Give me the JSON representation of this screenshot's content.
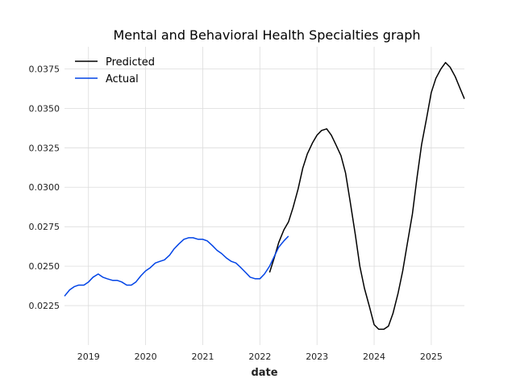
{
  "chart_data": {
    "type": "line",
    "title": "Mental and Behavioral Health Specialties graph",
    "xlabel": "date",
    "ylabel": "",
    "xlim": [
      2018.58,
      2025.58
    ],
    "ylim": [
      0.02,
      0.0389
    ],
    "x_ticks": [
      2019,
      2020,
      2021,
      2022,
      2023,
      2024,
      2025
    ],
    "x_tick_labels": [
      "2019",
      "2020",
      "2021",
      "2022",
      "2023",
      "2024",
      "2025"
    ],
    "y_ticks": [
      0.0225,
      0.025,
      0.0275,
      0.03,
      0.0325,
      0.035,
      0.0375
    ],
    "y_tick_labels": [
      "0.0225",
      "0.0250",
      "0.0275",
      "0.0300",
      "0.0325",
      "0.0350",
      "0.0375"
    ],
    "grid": true,
    "legend_position": "top-left",
    "series": [
      {
        "name": "Predicted",
        "color": "#000000",
        "x": [
          2022.17,
          2022.25,
          2022.33,
          2022.42,
          2022.5,
          2022.58,
          2022.67,
          2022.75,
          2022.83,
          2022.92,
          2023.0,
          2023.08,
          2023.17,
          2023.25,
          2023.33,
          2023.42,
          2023.5,
          2023.58,
          2023.67,
          2023.75,
          2023.83,
          2023.92,
          2024.0,
          2024.08,
          2024.17,
          2024.25,
          2024.33,
          2024.42,
          2024.5,
          2024.58,
          2024.67,
          2024.75,
          2024.83,
          2024.92,
          2025.0,
          2025.08,
          2025.17,
          2025.25,
          2025.33,
          2025.42,
          2025.5,
          2025.58
        ],
        "y": [
          0.0246,
          0.0255,
          0.0265,
          0.0273,
          0.0278,
          0.0287,
          0.0299,
          0.0312,
          0.0321,
          0.0328,
          0.0333,
          0.0336,
          0.0337,
          0.0333,
          0.0327,
          0.032,
          0.0309,
          0.0291,
          0.027,
          0.025,
          0.0236,
          0.0224,
          0.0213,
          0.021,
          0.021,
          0.0212,
          0.022,
          0.0233,
          0.0247,
          0.0264,
          0.0283,
          0.0306,
          0.0327,
          0.0344,
          0.036,
          0.0369,
          0.0375,
          0.0379,
          0.0376,
          0.037,
          0.0363,
          0.0356
        ]
      },
      {
        "name": "Actual",
        "color": "#0043e6",
        "x": [
          2018.58,
          2018.67,
          2018.75,
          2018.83,
          2018.92,
          2019.0,
          2019.08,
          2019.17,
          2019.25,
          2019.33,
          2019.42,
          2019.5,
          2019.58,
          2019.67,
          2019.75,
          2019.83,
          2019.92,
          2020.0,
          2020.08,
          2020.17,
          2020.25,
          2020.33,
          2020.42,
          2020.5,
          2020.58,
          2020.67,
          2020.75,
          2020.83,
          2020.92,
          2021.0,
          2021.08,
          2021.17,
          2021.25,
          2021.33,
          2021.42,
          2021.5,
          2021.58,
          2021.67,
          2021.75,
          2021.83,
          2021.92,
          2022.0,
          2022.08,
          2022.17,
          2022.25,
          2022.33,
          2022.42,
          2022.5
        ],
        "y": [
          0.0231,
          0.0235,
          0.0237,
          0.0238,
          0.0238,
          0.024,
          0.0243,
          0.0245,
          0.0243,
          0.0242,
          0.0241,
          0.0241,
          0.024,
          0.0238,
          0.0238,
          0.024,
          0.0244,
          0.0247,
          0.0249,
          0.0252,
          0.0253,
          0.0254,
          0.0257,
          0.0261,
          0.0264,
          0.0267,
          0.0268,
          0.0268,
          0.0267,
          0.0267,
          0.0266,
          0.0263,
          0.026,
          0.0258,
          0.0255,
          0.0253,
          0.0252,
          0.0249,
          0.0246,
          0.0243,
          0.0242,
          0.0242,
          0.0245,
          0.025,
          0.0256,
          0.0262,
          0.0266,
          0.0269
        ]
      }
    ]
  }
}
